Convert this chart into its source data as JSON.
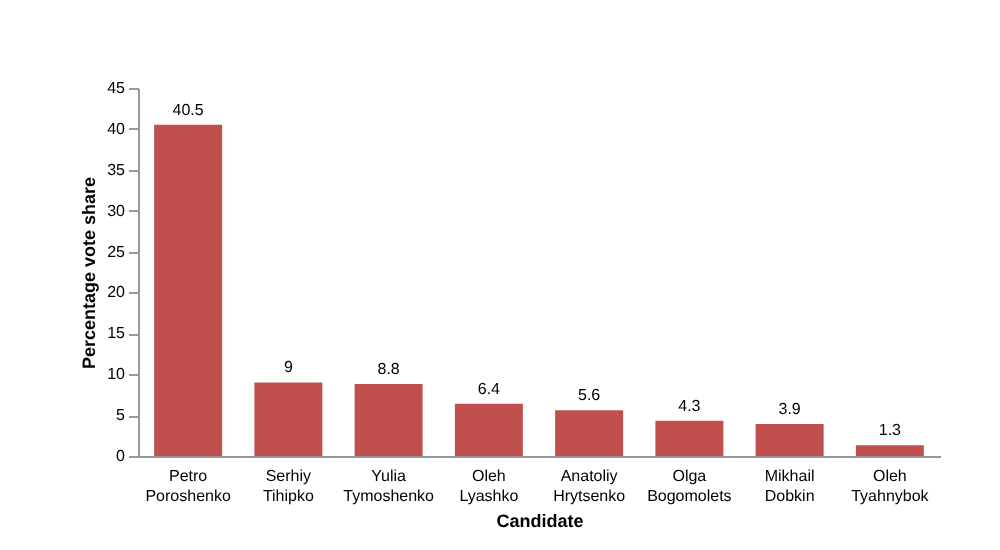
{
  "chart_data": {
    "type": "bar",
    "categories": [
      "Petro Poroshenko",
      "Serhiy Tihipko",
      "Yulia Tymoshenko",
      "Oleh Lyashko",
      "Anatoliy Hrytsenko",
      "Olga Bogomolets",
      "Mikhail Dobkin",
      "Oleh Tyahnybok"
    ],
    "values": [
      40.5,
      9,
      8.8,
      6.4,
      5.6,
      4.3,
      3.9,
      1.3
    ],
    "color": "#c0504d",
    "xlabel": "Candidate",
    "ylabel": "Percentage vote share",
    "ylim": [
      0,
      45
    ],
    "yticks": [
      0,
      5,
      10,
      15,
      20,
      25,
      30,
      35,
      40,
      45
    ],
    "data_labels": true,
    "grid": false
  }
}
